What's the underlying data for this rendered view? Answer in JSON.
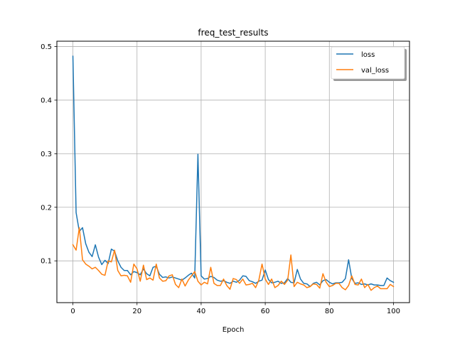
{
  "chart_data": {
    "type": "line",
    "title": "freq_test_results",
    "xlabel": "Epoch",
    "ylabel": "",
    "xlim": [
      -5,
      105
    ],
    "ylim": [
      0.022,
      0.51
    ],
    "xticks": [
      0,
      20,
      40,
      60,
      80,
      100
    ],
    "yticks": [
      0.1,
      0.2,
      0.3,
      0.4,
      0.5
    ],
    "grid": true,
    "legend_position": "top-right",
    "x": [
      0,
      1,
      2,
      3,
      4,
      5,
      6,
      7,
      8,
      9,
      10,
      11,
      12,
      13,
      14,
      15,
      16,
      17,
      18,
      19,
      20,
      21,
      22,
      23,
      24,
      25,
      26,
      27,
      28,
      29,
      30,
      31,
      32,
      33,
      34,
      35,
      36,
      37,
      38,
      39,
      40,
      41,
      42,
      43,
      44,
      45,
      46,
      47,
      48,
      49,
      50,
      51,
      52,
      53,
      54,
      55,
      56,
      57,
      58,
      59,
      60,
      61,
      62,
      63,
      64,
      65,
      66,
      67,
      68,
      69,
      70,
      71,
      72,
      73,
      74,
      75,
      76,
      77,
      78,
      79,
      80,
      81,
      82,
      83,
      84,
      85,
      86,
      87,
      88,
      89,
      90,
      91,
      92,
      93,
      94,
      95,
      96,
      97,
      98,
      99,
      100
    ],
    "series": [
      {
        "name": "loss",
        "color": "#1f77b4",
        "values": [
          0.482,
          0.19,
          0.155,
          0.162,
          0.132,
          0.116,
          0.108,
          0.13,
          0.107,
          0.093,
          0.101,
          0.095,
          0.122,
          0.118,
          0.1,
          0.088,
          0.082,
          0.082,
          0.074,
          0.08,
          0.078,
          0.074,
          0.085,
          0.076,
          0.072,
          0.088,
          0.09,
          0.075,
          0.069,
          0.07,
          0.068,
          0.07,
          0.068,
          0.066,
          0.064,
          0.068,
          0.073,
          0.077,
          0.068,
          0.299,
          0.072,
          0.066,
          0.067,
          0.071,
          0.069,
          0.064,
          0.062,
          0.063,
          0.06,
          0.058,
          0.062,
          0.06,
          0.064,
          0.072,
          0.071,
          0.063,
          0.061,
          0.058,
          0.062,
          0.064,
          0.083,
          0.065,
          0.059,
          0.06,
          0.062,
          0.058,
          0.059,
          0.067,
          0.06,
          0.059,
          0.084,
          0.066,
          0.058,
          0.057,
          0.052,
          0.058,
          0.06,
          0.055,
          0.063,
          0.065,
          0.06,
          0.057,
          0.059,
          0.059,
          0.06,
          0.067,
          0.102,
          0.067,
          0.058,
          0.059,
          0.056,
          0.057,
          0.055,
          0.057,
          0.055,
          0.055,
          0.054,
          0.054,
          0.068,
          0.063,
          0.06
        ]
      },
      {
        "name": "val_loss",
        "color": "#ff7f0e",
        "values": [
          0.13,
          0.12,
          0.162,
          0.102,
          0.094,
          0.09,
          0.085,
          0.088,
          0.082,
          0.075,
          0.073,
          0.1,
          0.098,
          0.12,
          0.082,
          0.072,
          0.073,
          0.072,
          0.06,
          0.094,
          0.085,
          0.062,
          0.092,
          0.065,
          0.068,
          0.064,
          0.094,
          0.068,
          0.062,
          0.063,
          0.072,
          0.074,
          0.056,
          0.05,
          0.066,
          0.053,
          0.064,
          0.072,
          0.08,
          0.062,
          0.055,
          0.06,
          0.057,
          0.088,
          0.058,
          0.054,
          0.054,
          0.066,
          0.054,
          0.047,
          0.067,
          0.065,
          0.058,
          0.066,
          0.055,
          0.056,
          0.058,
          0.05,
          0.064,
          0.094,
          0.066,
          0.056,
          0.066,
          0.05,
          0.054,
          0.062,
          0.056,
          0.064,
          0.111,
          0.052,
          0.06,
          0.057,
          0.055,
          0.05,
          0.052,
          0.057,
          0.056,
          0.049,
          0.076,
          0.06,
          0.052,
          0.054,
          0.058,
          0.058,
          0.05,
          0.046,
          0.054,
          0.072,
          0.056,
          0.055,
          0.066,
          0.05,
          0.056,
          0.045,
          0.05,
          0.053,
          0.048,
          0.048,
          0.048,
          0.056,
          0.052
        ]
      }
    ]
  }
}
